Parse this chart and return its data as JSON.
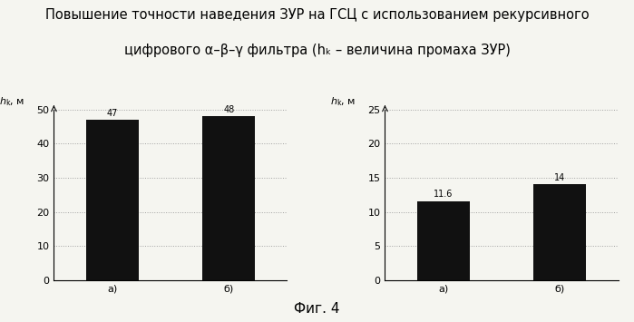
{
  "title_line1": "Повышение точности наведения ЗУР на ГСЦ с использованием рекурсивного",
  "title_line2": "цифрового α–β–γ фильтра (hₖ – величина промаха ЗУР)",
  "fig_caption": "Фиг. 4",
  "left_chart": {
    "categories": [
      "а)",
      "б)"
    ],
    "values": [
      47,
      48
    ],
    "labels": [
      "47",
      "48"
    ],
    "ylabel": "$h_\\mathrm{k}$, м",
    "ylim": [
      0,
      50
    ],
    "yticks": [
      0,
      10,
      20,
      30,
      40,
      50
    ],
    "bar_positions": [
      1,
      3
    ],
    "xlim": [
      0,
      4
    ]
  },
  "right_chart": {
    "categories": [
      "а)",
      "б)"
    ],
    "values": [
      11.6,
      14
    ],
    "labels": [
      "11.6",
      "14"
    ],
    "ylabel": "$h_\\mathrm{k}$, м",
    "ylim": [
      0,
      25
    ],
    "yticks": [
      0,
      5,
      10,
      15,
      20,
      25
    ],
    "bar_positions": [
      1,
      3
    ],
    "xlim": [
      0,
      4
    ]
  },
  "bar_color": "#111111",
  "bg_color": "#f5f5f0",
  "grid_color": "#999999",
  "title_fontsize": 10.5,
  "label_fontsize": 8,
  "tick_fontsize": 8,
  "bar_width": 0.9,
  "bar_label_fontsize": 7,
  "caption_fontsize": 11
}
